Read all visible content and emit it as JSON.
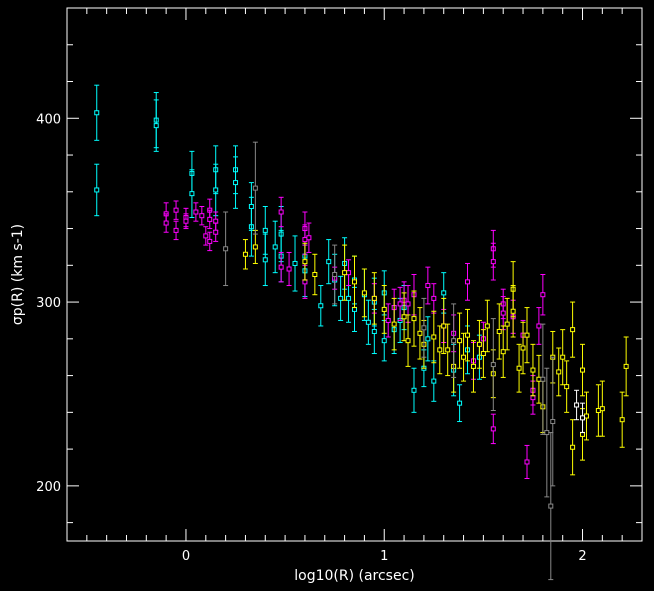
{
  "chart_data": {
    "type": "scatter",
    "title": "",
    "xlabel": "log10(R) (arcsec)",
    "ylabel": "σp(R) (km s-1)",
    "xlim": [
      -0.6,
      2.3
    ],
    "ylim": [
      170,
      460
    ],
    "x_ticks": [
      0,
      1,
      2
    ],
    "y_ticks": [
      200,
      300,
      400
    ],
    "x_tick_labels": [
      "0",
      "1",
      "2"
    ],
    "y_tick_labels": [
      "200",
      "300",
      "400"
    ],
    "grid": false,
    "background": "#000000",
    "axis_color": "#ffffff",
    "marker": "open-square-with-errorbars",
    "series": [
      {
        "color": "#00ffff",
        "points": [
          [
            -0.45,
            403,
            15
          ],
          [
            -0.45,
            361,
            14
          ],
          [
            -0.15,
            399,
            15
          ],
          [
            -0.15,
            396,
            14
          ],
          [
            0.03,
            370,
            12
          ],
          [
            0.03,
            359,
            13
          ],
          [
            0.15,
            372,
            13
          ],
          [
            0.15,
            361,
            14
          ],
          [
            0.25,
            372,
            13
          ],
          [
            0.25,
            365,
            14
          ],
          [
            0.33,
            341,
            16
          ],
          [
            0.33,
            352,
            13
          ],
          [
            0.4,
            339,
            13
          ],
          [
            0.4,
            323,
            14
          ],
          [
            0.45,
            330,
            14
          ],
          [
            0.48,
            337,
            15
          ],
          [
            0.48,
            325,
            14
          ],
          [
            0.55,
            321,
            15
          ],
          [
            0.6,
            325,
            14
          ],
          [
            0.6,
            317,
            14
          ],
          [
            0.68,
            298,
            11
          ],
          [
            0.72,
            322,
            12
          ],
          [
            0.75,
            312,
            14
          ],
          [
            0.78,
            302,
            12
          ],
          [
            0.8,
            321,
            14
          ],
          [
            0.82,
            302,
            13
          ],
          [
            0.85,
            312,
            13
          ],
          [
            0.85,
            296,
            12
          ],
          [
            0.9,
            304,
            14
          ],
          [
            0.92,
            289,
            12
          ],
          [
            0.95,
            284,
            12
          ],
          [
            0.95,
            300,
            13
          ],
          [
            1.0,
            279,
            11
          ],
          [
            1.0,
            305,
            12
          ],
          [
            1.05,
            285,
            13
          ],
          [
            1.08,
            290,
            12
          ],
          [
            1.1,
            297,
            12
          ],
          [
            1.15,
            252,
            12
          ],
          [
            1.2,
            264,
            10
          ],
          [
            1.22,
            280,
            12
          ],
          [
            1.25,
            257,
            11
          ],
          [
            1.3,
            305,
            11
          ],
          [
            1.35,
            263,
            14
          ],
          [
            1.38,
            245,
            10
          ],
          [
            1.42,
            274,
            13
          ],
          [
            1.48,
            270,
            12
          ]
        ]
      },
      {
        "color": "#ff00ff",
        "points": [
          [
            -0.1,
            348,
            6
          ],
          [
            -0.1,
            343,
            5
          ],
          [
            -0.05,
            350,
            5
          ],
          [
            -0.05,
            339,
            5
          ],
          [
            0.0,
            346,
            5
          ],
          [
            0.0,
            344,
            4
          ],
          [
            0.05,
            349,
            5
          ],
          [
            0.08,
            347,
            5
          ],
          [
            0.1,
            336,
            5
          ],
          [
            0.12,
            350,
            6
          ],
          [
            0.12,
            345,
            5
          ],
          [
            0.12,
            333,
            5
          ],
          [
            0.15,
            344,
            5
          ],
          [
            0.15,
            338,
            5
          ],
          [
            0.48,
            349,
            8
          ],
          [
            0.48,
            319,
            8
          ],
          [
            0.52,
            318,
            9
          ],
          [
            0.6,
            340,
            9
          ],
          [
            0.6,
            334,
            8
          ],
          [
            0.6,
            311,
            9
          ],
          [
            0.62,
            335,
            8
          ],
          [
            0.75,
            313,
            6
          ],
          [
            0.82,
            316,
            7
          ],
          [
            0.95,
            302,
            8
          ],
          [
            1.02,
            290,
            9
          ],
          [
            1.05,
            297,
            10
          ],
          [
            1.08,
            299,
            9
          ],
          [
            1.1,
            301,
            10
          ],
          [
            1.12,
            299,
            10
          ],
          [
            1.15,
            304,
            11
          ],
          [
            1.22,
            309,
            10
          ],
          [
            1.25,
            302,
            8
          ],
          [
            1.3,
            287,
            9
          ],
          [
            1.35,
            283,
            10
          ],
          [
            1.42,
            311,
            10
          ],
          [
            1.45,
            268,
            10
          ],
          [
            1.5,
            280,
            9
          ],
          [
            1.55,
            329,
            10
          ],
          [
            1.55,
            322,
            10
          ],
          [
            1.55,
            231,
            8
          ],
          [
            1.6,
            299,
            8
          ],
          [
            1.6,
            294,
            9
          ],
          [
            1.65,
            292,
            9
          ],
          [
            1.7,
            282,
            8
          ],
          [
            1.72,
            213,
            9
          ],
          [
            1.75,
            252,
            8
          ],
          [
            1.75,
            248,
            9
          ],
          [
            1.78,
            287,
            10
          ],
          [
            1.8,
            304,
            11
          ]
        ]
      },
      {
        "color": "#ffff00",
        "points": [
          [
            0.3,
            326,
            8
          ],
          [
            0.35,
            330,
            9
          ],
          [
            0.6,
            322,
            10
          ],
          [
            0.65,
            315,
            11
          ],
          [
            0.8,
            316,
            15
          ],
          [
            0.85,
            311,
            14
          ],
          [
            0.9,
            305,
            13
          ],
          [
            0.95,
            302,
            14
          ],
          [
            1.0,
            296,
            13
          ],
          [
            1.05,
            288,
            14
          ],
          [
            1.1,
            292,
            13
          ],
          [
            1.12,
            279,
            14
          ],
          [
            1.15,
            291,
            15
          ],
          [
            1.18,
            283,
            14
          ],
          [
            1.2,
            277,
            13
          ],
          [
            1.25,
            281,
            14
          ],
          [
            1.28,
            274,
            13
          ],
          [
            1.3,
            287,
            15
          ],
          [
            1.32,
            274,
            14
          ],
          [
            1.35,
            265,
            14
          ],
          [
            1.38,
            279,
            15
          ],
          [
            1.4,
            270,
            13
          ],
          [
            1.42,
            282,
            14
          ],
          [
            1.45,
            265,
            14
          ],
          [
            1.48,
            277,
            13
          ],
          [
            1.5,
            272,
            13
          ],
          [
            1.52,
            287,
            14
          ],
          [
            1.55,
            261,
            13
          ],
          [
            1.58,
            284,
            15
          ],
          [
            1.6,
            273,
            14
          ],
          [
            1.62,
            288,
            14
          ],
          [
            1.65,
            307,
            15
          ],
          [
            1.65,
            295,
            14
          ],
          [
            1.68,
            264,
            13
          ],
          [
            1.7,
            275,
            14
          ],
          [
            1.72,
            282,
            15
          ],
          [
            1.75,
            263,
            14
          ],
          [
            1.78,
            258,
            13
          ],
          [
            1.8,
            243,
            14
          ],
          [
            1.85,
            270,
            14
          ],
          [
            1.88,
            262,
            13
          ],
          [
            1.9,
            270,
            15
          ],
          [
            1.92,
            254,
            14
          ],
          [
            1.95,
            285,
            15
          ],
          [
            1.95,
            221,
            15
          ],
          [
            2.0,
            263,
            14
          ],
          [
            2.0,
            228,
            14
          ],
          [
            2.02,
            238,
            13
          ],
          [
            2.08,
            241,
            14
          ],
          [
            2.1,
            242,
            15
          ],
          [
            2.2,
            236,
            15
          ],
          [
            2.22,
            265,
            16
          ]
        ]
      },
      {
        "color": "#888888",
        "points": [
          [
            0.2,
            329,
            20
          ],
          [
            0.35,
            362,
            25
          ],
          [
            0.75,
            315,
            16
          ],
          [
            1.2,
            286,
            16
          ],
          [
            1.35,
            279,
            20
          ],
          [
            1.55,
            266,
            25
          ],
          [
            1.8,
            258,
            30
          ],
          [
            1.82,
            229,
            35
          ],
          [
            1.84,
            189,
            40
          ],
          [
            1.85,
            235,
            35
          ]
        ]
      },
      {
        "color": "#ffffff",
        "points": [
          [
            1.97,
            244,
            8
          ],
          [
            2.0,
            237,
            8
          ]
        ]
      }
    ]
  }
}
